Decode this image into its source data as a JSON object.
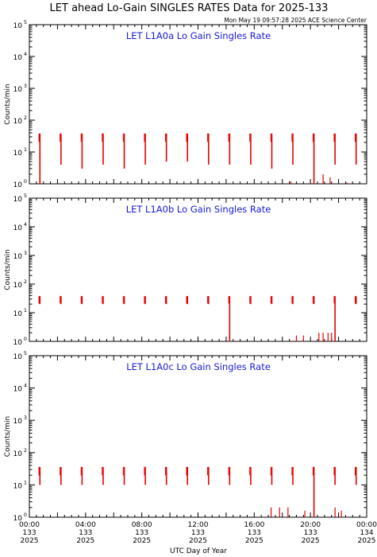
{
  "title": "LET ahead Lo-Gain SINGLES RATES Data for 2025-133",
  "timestamp": "Mon May 19 09:57:28 2025 ACE Science Center",
  "colors": {
    "data": "#e60000",
    "panel_title": "#1a1adb",
    "axes": "#000000"
  },
  "chart_data": [
    {
      "type": "line",
      "title": "LET L1A0a Lo Gain Singles Rate",
      "ylabel": "Counts/min",
      "yscale": "log",
      "ylim": [
        1,
        100000
      ],
      "xlim": [
        0,
        24
      ],
      "yticks": [
        {
          "base": "10",
          "exp": "0"
        },
        {
          "base": "10",
          "exp": "1"
        },
        {
          "base": "10",
          "exp": "2"
        },
        {
          "base": "10",
          "exp": "3"
        },
        {
          "base": "10",
          "exp": "4"
        },
        {
          "base": "10",
          "exp": "5"
        }
      ],
      "series": [
        {
          "bursts": [
            {
              "t": 0.75,
              "low": 1,
              "high": 38
            },
            {
              "t": 2.25,
              "low": 4,
              "high": 38
            },
            {
              "t": 3.75,
              "low": 3,
              "high": 38
            },
            {
              "t": 5.25,
              "low": 4,
              "high": 38
            },
            {
              "t": 6.75,
              "low": 3,
              "high": 38
            },
            {
              "t": 8.25,
              "low": 4,
              "high": 38
            },
            {
              "t": 9.75,
              "low": 5,
              "high": 38
            },
            {
              "t": 11.25,
              "low": 5,
              "high": 38
            },
            {
              "t": 12.75,
              "low": 4,
              "high": 38
            },
            {
              "t": 14.25,
              "low": 4,
              "high": 38
            },
            {
              "t": 15.75,
              "low": 4,
              "high": 38
            },
            {
              "t": 17.25,
              "low": 3,
              "high": 38
            },
            {
              "t": 18.75,
              "low": 4,
              "high": 38
            },
            {
              "t": 20.25,
              "low": 1,
              "high": 38
            },
            {
              "t": 21.75,
              "low": 4,
              "high": 38
            },
            {
              "t": 23.25,
              "low": 4,
              "high": 38
            }
          ],
          "scatter": [
            {
              "t": 20.9,
              "y": 2
            },
            {
              "t": 21.4,
              "y": 1.6
            },
            {
              "t": 18.6,
              "y": 1.2
            },
            {
              "t": 22.6,
              "y": 1.1
            }
          ]
        }
      ]
    },
    {
      "type": "line",
      "title": "LET L1A0b Lo Gain Singles Rate",
      "ylabel": "Counts/min",
      "yscale": "log",
      "ylim": [
        1,
        100000
      ],
      "xlim": [
        0,
        24
      ],
      "yticks": [
        {
          "base": "10",
          "exp": "0"
        },
        {
          "base": "10",
          "exp": "1"
        },
        {
          "base": "10",
          "exp": "2"
        },
        {
          "base": "10",
          "exp": "3"
        },
        {
          "base": "10",
          "exp": "4"
        },
        {
          "base": "10",
          "exp": "5"
        }
      ],
      "series": [
        {
          "bursts": [
            {
              "t": 0.75,
              "low": 20,
              "high": 38
            },
            {
              "t": 2.25,
              "low": 20,
              "high": 38
            },
            {
              "t": 3.75,
              "low": 20,
              "high": 38
            },
            {
              "t": 5.25,
              "low": 20,
              "high": 38
            },
            {
              "t": 6.75,
              "low": 20,
              "high": 38
            },
            {
              "t": 8.25,
              "low": 20,
              "high": 38
            },
            {
              "t": 9.75,
              "low": 20,
              "high": 38
            },
            {
              "t": 11.25,
              "low": 20,
              "high": 38
            },
            {
              "t": 12.75,
              "low": 20,
              "high": 38
            },
            {
              "t": 14.25,
              "low": 1,
              "high": 38
            },
            {
              "t": 15.75,
              "low": 20,
              "high": 38
            },
            {
              "t": 17.25,
              "low": 20,
              "high": 38
            },
            {
              "t": 18.75,
              "low": 20,
              "high": 38
            },
            {
              "t": 20.25,
              "low": 20,
              "high": 38
            },
            {
              "t": 21.75,
              "low": 1,
              "high": 38
            },
            {
              "t": 23.25,
              "low": 20,
              "high": 38
            }
          ],
          "scatter": [
            {
              "t": 20.6,
              "y": 2
            },
            {
              "t": 20.9,
              "y": 2
            },
            {
              "t": 21.25,
              "y": 2
            },
            {
              "t": 21.5,
              "y": 2
            },
            {
              "t": 19.0,
              "y": 1.6
            },
            {
              "t": 19.5,
              "y": 1.6
            }
          ]
        }
      ]
    },
    {
      "type": "line",
      "title": "LET L1A0c Lo Gain Singles Rate",
      "ylabel": "Counts/min",
      "yscale": "log",
      "ylim": [
        1,
        100000
      ],
      "xlim": [
        0,
        24
      ],
      "xlabel": "UTC Day of Year",
      "yticks": [
        {
          "base": "10",
          "exp": "0"
        },
        {
          "base": "10",
          "exp": "1"
        },
        {
          "base": "10",
          "exp": "2"
        },
        {
          "base": "10",
          "exp": "3"
        },
        {
          "base": "10",
          "exp": "4"
        },
        {
          "base": "10",
          "exp": "5"
        }
      ],
      "xticks": [
        {
          "t": 0,
          "lines": [
            "00:00",
            "133",
            "2025"
          ]
        },
        {
          "t": 4,
          "lines": [
            "04:00",
            "133",
            "2025"
          ]
        },
        {
          "t": 8,
          "lines": [
            "08:00",
            "133",
            "2025"
          ]
        },
        {
          "t": 12,
          "lines": [
            "12:00",
            "133",
            "2025"
          ]
        },
        {
          "t": 16,
          "lines": [
            "16:00",
            "133",
            "2025"
          ]
        },
        {
          "t": 20,
          "lines": [
            "20:00",
            "133",
            "2025"
          ]
        },
        {
          "t": 24,
          "lines": [
            "00:00",
            "134",
            "2025"
          ]
        }
      ],
      "series": [
        {
          "bursts": [
            {
              "t": 0.75,
              "low": 10,
              "high": 36
            },
            {
              "t": 2.25,
              "low": 10,
              "high": 36
            },
            {
              "t": 3.75,
              "low": 10,
              "high": 36
            },
            {
              "t": 5.25,
              "low": 10,
              "high": 36
            },
            {
              "t": 6.75,
              "low": 10,
              "high": 36
            },
            {
              "t": 8.25,
              "low": 10,
              "high": 36
            },
            {
              "t": 9.75,
              "low": 10,
              "high": 36
            },
            {
              "t": 11.25,
              "low": 10,
              "high": 36
            },
            {
              "t": 12.75,
              "low": 10,
              "high": 36
            },
            {
              "t": 14.25,
              "low": 10,
              "high": 36
            },
            {
              "t": 15.75,
              "low": 10,
              "high": 36
            },
            {
              "t": 17.25,
              "low": 10,
              "high": 36
            },
            {
              "t": 18.75,
              "low": 10,
              "high": 36
            },
            {
              "t": 20.25,
              "low": 1,
              "high": 36
            },
            {
              "t": 21.75,
              "low": 10,
              "high": 36
            },
            {
              "t": 23.25,
              "low": 10,
              "high": 36
            }
          ],
          "scatter": [
            {
              "t": 17.2,
              "y": 2
            },
            {
              "t": 17.8,
              "y": 2
            },
            {
              "t": 18.4,
              "y": 2
            },
            {
              "t": 21.75,
              "y": 2
            },
            {
              "t": 19.6,
              "y": 1.6
            },
            {
              "t": 22.2,
              "y": 1.6
            }
          ]
        }
      ]
    }
  ]
}
